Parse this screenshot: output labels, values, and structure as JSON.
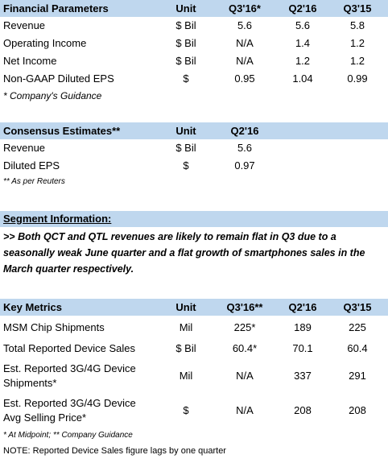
{
  "financial": {
    "headers": [
      "Financial Parameters",
      "Unit",
      "Q3'16*",
      "Q2'16",
      "Q3'15"
    ],
    "rows": [
      [
        "Revenue",
        "$ Bil",
        "5.6",
        "5.6",
        "5.8"
      ],
      [
        "Operating Income",
        "$ Bil",
        "N/A",
        "1.4",
        "1.2"
      ],
      [
        "Net Income",
        "$ Bil",
        "N/A",
        "1.2",
        "1.2"
      ],
      [
        "Non-GAAP Diluted EPS",
        "$",
        "0.95",
        "1.04",
        "0.99"
      ]
    ],
    "note": "* Company's Guidance"
  },
  "consensus": {
    "headers": [
      "Consensus Estimates**",
      "Unit",
      "Q2'16"
    ],
    "rows": [
      [
        "Revenue",
        "$ Bil",
        "5.6"
      ],
      [
        "Diluted EPS",
        "$",
        "0.97"
      ]
    ],
    "note": "** As per Reuters"
  },
  "segment": {
    "title": "Segment Information:",
    "text": ">> Both QCT and QTL revenues are likely to remain flat in Q3 due to a seasonally weak June quarter and a flat growth of smartphones sales in the March quarter respectively."
  },
  "key_metrics": {
    "headers": [
      "Key Metrics",
      "Unit",
      "Q3'16**",
      "Q2'16",
      "Q3'15"
    ],
    "rows": [
      [
        "MSM Chip Shipments",
        "Mil",
        "225*",
        "189",
        "225"
      ],
      [
        "Total Reported Device Sales",
        "$ Bil",
        "60.4*",
        "70.1",
        "60.4"
      ],
      [
        "Est. Reported 3G/4G Device",
        "Mil",
        "N/A",
        "337",
        "291"
      ],
      [
        "Est. Reported 3G/4G Device",
        "$",
        "N/A",
        "208",
        "208"
      ]
    ],
    "row_line2": [
      "Shipments*",
      "Avg Selling Price*"
    ],
    "note": "* At Midpoint; ** Company Guidance"
  },
  "footer_note": "NOTE: Reported Device Sales figure lags by one quarter"
}
